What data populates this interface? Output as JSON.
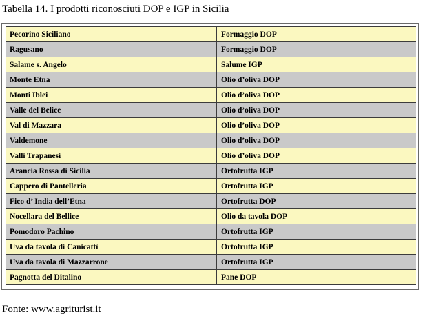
{
  "document": {
    "caption": "Tabella 14. I prodotti riconosciuti DOP e IGP in Sicilia",
    "source": "Fonte: www.agriturist.it"
  },
  "colors": {
    "row_light": "#fbf8c0",
    "row_dark": "#c9c9c9",
    "border": "#3c3c3c"
  },
  "table": {
    "rows": [
      {
        "name": "Pecorino Siciliano",
        "category": "Formaggio DOP"
      },
      {
        "name": "Ragusano",
        "category": "Formaggio DOP"
      },
      {
        "name": "Salame s. Angelo",
        "category": "Salume IGP"
      },
      {
        "name": "Monte Etna",
        "category": "Olio d’oliva DOP"
      },
      {
        "name": "Monti Iblei",
        "category": "Olio d’oliva DOP"
      },
      {
        "name": "Valle del Belice",
        "category": "Olio d’oliva DOP"
      },
      {
        "name": "Val di Mazzara",
        "category": "Olio d’oliva DOP"
      },
      {
        "name": "Valdemone",
        "category": "Olio d’oliva DOP"
      },
      {
        "name": "Valli Trapanesi",
        "category": "Olio d’oliva DOP"
      },
      {
        "name": "Arancia Rossa di Sicilia",
        "category": "Ortofrutta IGP"
      },
      {
        "name": "Cappero di Pantelleria",
        "category": "Ortofrutta IGP"
      },
      {
        "name": "Fico d’ India dell’Etna",
        "category": "Ortofrutta DOP"
      },
      {
        "name": "Nocellara del Bellice",
        "category": "Olio da tavola DOP"
      },
      {
        "name": "Pomodoro Pachino",
        "category": "Ortofrutta IGP"
      },
      {
        "name": "Uva da tavola di Canicattì",
        "category": "Ortofrutta IGP"
      },
      {
        "name": "Uva da tavola di Mazzarrone",
        "category": "Ortofrutta IGP"
      },
      {
        "name": "Pagnotta del Ditalino",
        "category": "Pane DOP"
      }
    ]
  }
}
